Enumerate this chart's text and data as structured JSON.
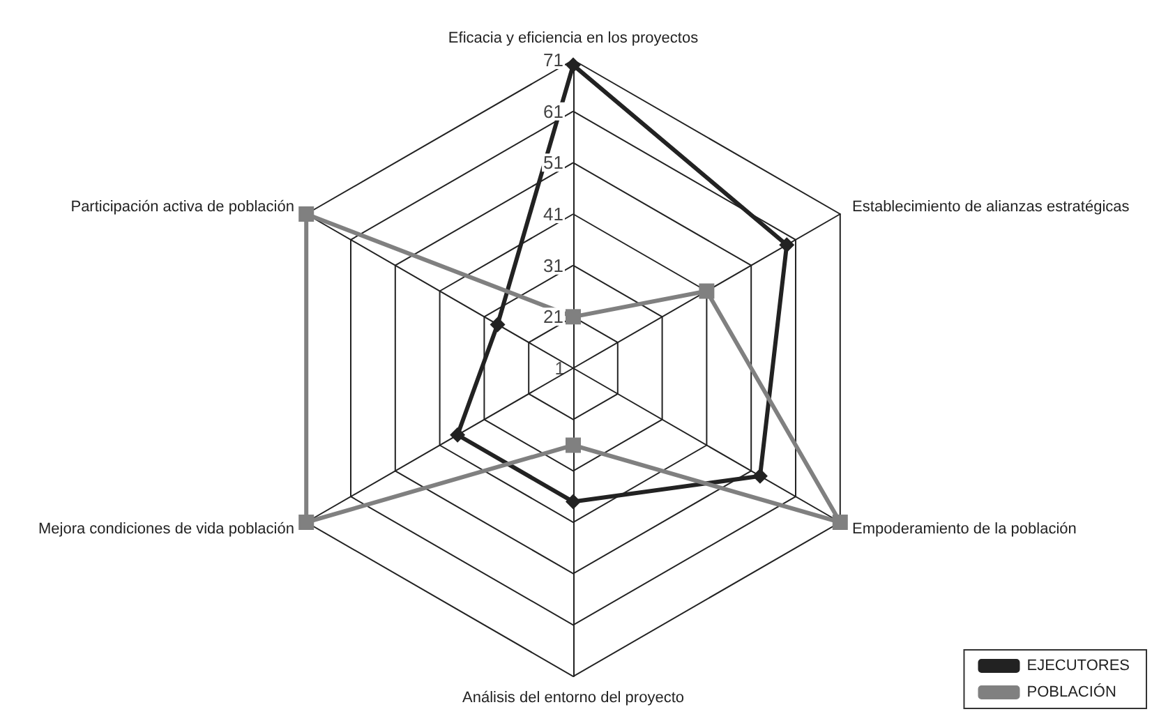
{
  "chart_data": {
    "type": "radar",
    "categories": [
      "Eficacia y eficiencia en los proyectos",
      "Establecimiento de alianzas estratégicas",
      "Empoderamiento de la población",
      "Análisis del entorno del proyecto",
      "Mejora condiciones de vida población",
      "Participación activa de población"
    ],
    "series": [
      {
        "name": "EJECUTORES",
        "color": "#222222",
        "marker": "diamond",
        "values": [
          70,
          59,
          53,
          37,
          37,
          28
        ]
      },
      {
        "name": "POBLACIÓN",
        "color": "#808080",
        "marker": "square",
        "values": [
          21,
          41,
          71,
          26,
          71,
          71
        ]
      }
    ],
    "ylim": [
      11,
      71
    ],
    "yticks": [
      21,
      31,
      41,
      51,
      61,
      71
    ],
    "annotations": [
      "1"
    ],
    "legend": "bottom right",
    "grid": true
  }
}
